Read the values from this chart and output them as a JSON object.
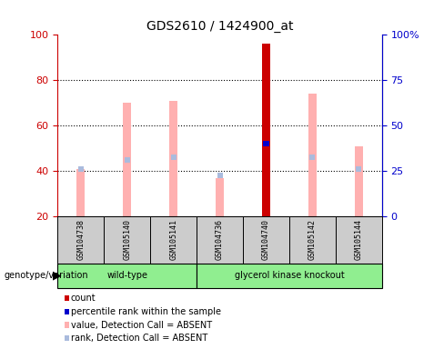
{
  "title": "GDS2610 / 1424900_at",
  "samples": [
    "GSM104738",
    "GSM105140",
    "GSM105141",
    "GSM104736",
    "GSM104740",
    "GSM105142",
    "GSM105144"
  ],
  "group_info": [
    {
      "name": "wild-type",
      "indices": [
        0,
        1,
        2
      ],
      "color": "#90EE90"
    },
    {
      "name": "glycerol kinase knockout",
      "indices": [
        3,
        4,
        5,
        6
      ],
      "color": "#90EE90"
    }
  ],
  "ylim_left": [
    20,
    100
  ],
  "left_ticks": [
    20,
    40,
    60,
    80,
    100
  ],
  "right_tick_labels": [
    "0",
    "25",
    "50",
    "75",
    "100%"
  ],
  "left_color": "#CC0000",
  "right_color": "#0000CC",
  "value_bars": {
    "GSM104738": {
      "value": 41,
      "rank": 41,
      "type": "absent"
    },
    "GSM105140": {
      "value": 70,
      "rank": 45,
      "type": "absent"
    },
    "GSM105141": {
      "value": 71,
      "rank": 46,
      "type": "absent"
    },
    "GSM104736": {
      "value": 37,
      "rank": 38,
      "type": "absent"
    },
    "GSM104740": {
      "value": 96,
      "rank": 52,
      "type": "present"
    },
    "GSM105142": {
      "value": 74,
      "rank": 46,
      "type": "absent"
    },
    "GSM105144": {
      "value": 51,
      "rank": 41,
      "type": "absent"
    }
  },
  "pink_bar_bottom": 20,
  "background_color": "#FFFFFF",
  "sample_box_color": "#CCCCCC",
  "pink_color": "#FFB0B0",
  "blue_rank_color": "#AABBDD",
  "red_count_color": "#CC0000",
  "blue_count_color": "#0000CC"
}
